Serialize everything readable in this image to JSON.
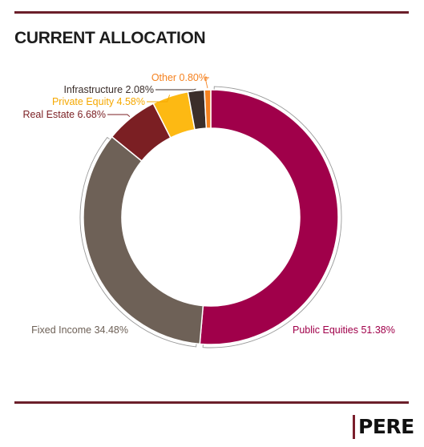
{
  "title": "CURRENT ALLOCATION",
  "logo": {
    "text": "PERE"
  },
  "colors": {
    "rule": "#6b1f2a",
    "logo_bar": "#7a1e2c"
  },
  "chart_data": {
    "type": "pie",
    "title": "CURRENT ALLOCATION",
    "style": "donut",
    "start": "12 o'clock",
    "direction": "clockwise",
    "slices": [
      {
        "label": "Public Equities",
        "value": 51.38,
        "display": "Public Equities 51.38%",
        "color": "#a0004a",
        "label_color": "#a0004a"
      },
      {
        "label": "Fixed Income",
        "value": 34.48,
        "display": "Fixed Income 34.48%",
        "color": "#6e6157",
        "label_color": "#6e6157"
      },
      {
        "label": "Real Estate",
        "value": 6.68,
        "display": "Real Estate 6.68%",
        "color": "#7b1f23",
        "label_color": "#7b1f23"
      },
      {
        "label": "Private Equity",
        "value": 4.58,
        "display": "Private Equity 4.58%",
        "color": "#fdb913",
        "label_color": "#f5a800"
      },
      {
        "label": "Infrastructure",
        "value": 2.08,
        "display": "Infrastructure 2.08%",
        "color": "#3b2e2a",
        "label_color": "#3b2e2a"
      },
      {
        "label": "Other",
        "value": 0.8,
        "display": "Other 0.80%",
        "color": "#f58220",
        "label_color": "#f58220"
      }
    ]
  }
}
